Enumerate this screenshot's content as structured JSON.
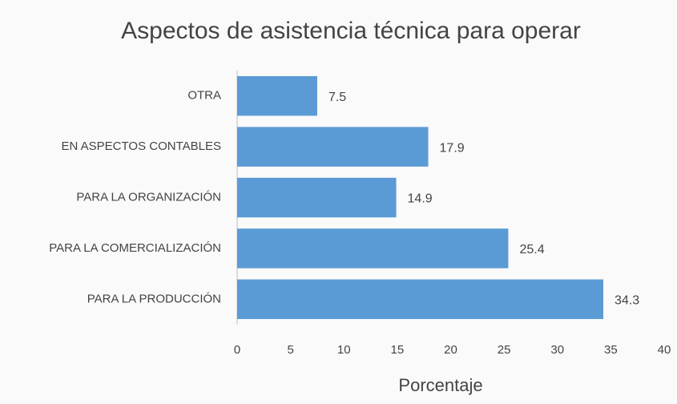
{
  "chart_data": {
    "type": "bar",
    "orientation": "horizontal",
    "title": "Aspectos de asistencia técnica para operar",
    "x_label": "Porcentaje",
    "categories": [
      "OTRA",
      "EN ASPECTOS CONTABLES",
      "PARA LA ORGANIZACIÓN",
      "PARA LA COMERCIALIZACIÓN",
      "PARA LA PRODUCCIÓN"
    ],
    "values": [
      7.5,
      17.9,
      14.9,
      25.4,
      34.3
    ],
    "color": "#5b9bd5",
    "xlim": [
      0,
      40
    ],
    "xticks": [
      0,
      5,
      10,
      15,
      20,
      25,
      30,
      35,
      40
    ],
    "grid": false
  }
}
